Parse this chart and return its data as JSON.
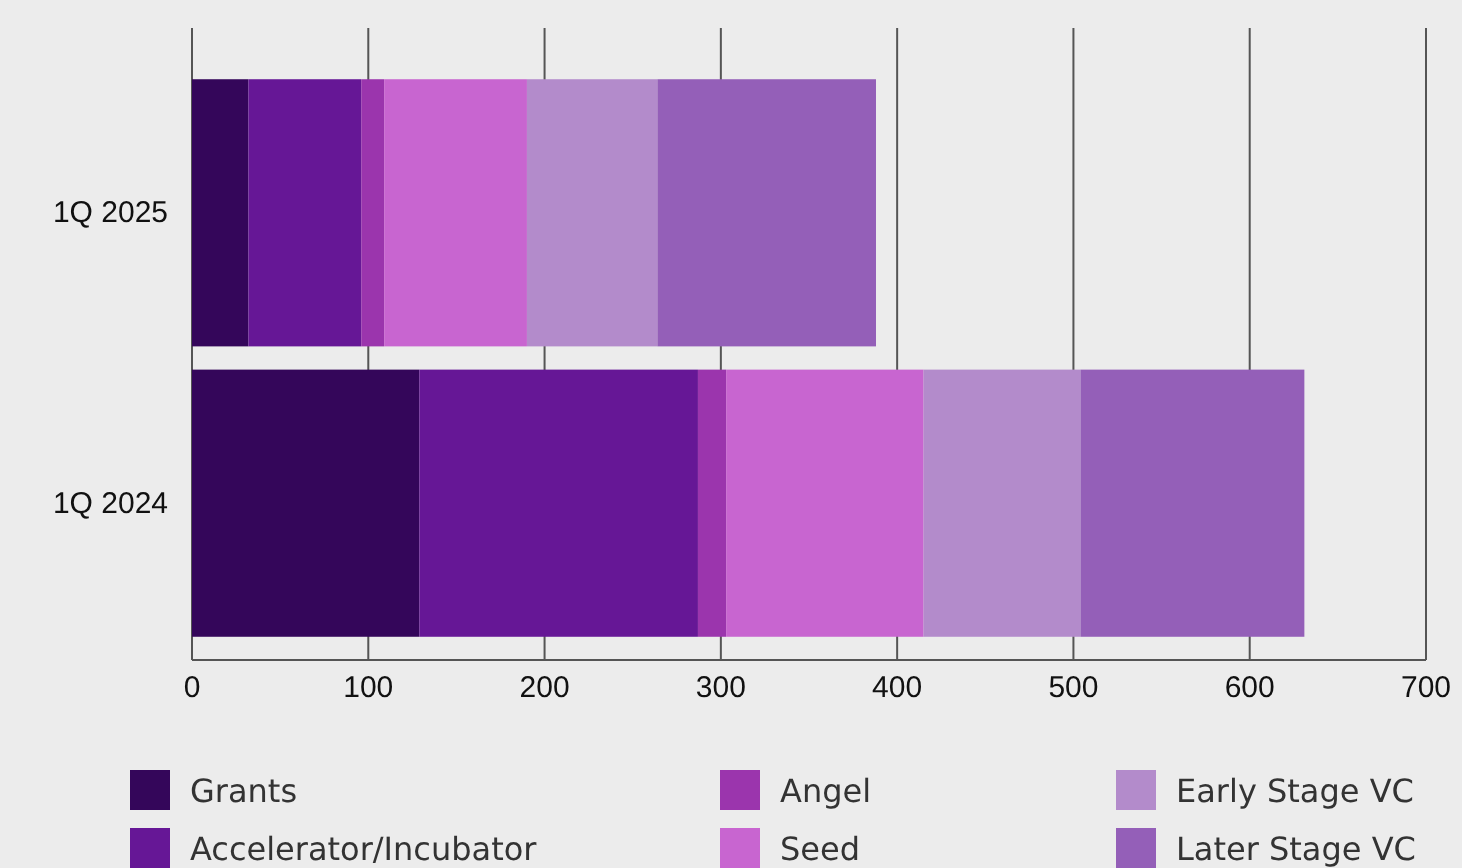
{
  "chart_data": {
    "type": "bar",
    "orientation": "horizontal",
    "stacked": true,
    "categories": [
      "1Q 2025",
      "1Q 2024"
    ],
    "series": [
      {
        "name": "Grants",
        "color": "#34065a",
        "values": [
          32,
          129
        ]
      },
      {
        "name": "Accelerator/Incubator",
        "color": "#661796",
        "values": [
          64,
          158
        ]
      },
      {
        "name": "Angel",
        "color": "#9b35ad",
        "values": [
          13,
          16
        ]
      },
      {
        "name": "Seed",
        "color": "#c865d0",
        "values": [
          81,
          112
        ]
      },
      {
        "name": "Early Stage VC",
        "color": "#b38bcb",
        "values": [
          74,
          89
        ]
      },
      {
        "name": "Later Stage VC",
        "color": "#945fb8",
        "values": [
          124,
          127
        ]
      }
    ],
    "xlim": [
      0,
      700
    ],
    "xticks": [
      0,
      100,
      200,
      300,
      400,
      500,
      600,
      700
    ],
    "grid": "x",
    "legend": "bottom"
  }
}
